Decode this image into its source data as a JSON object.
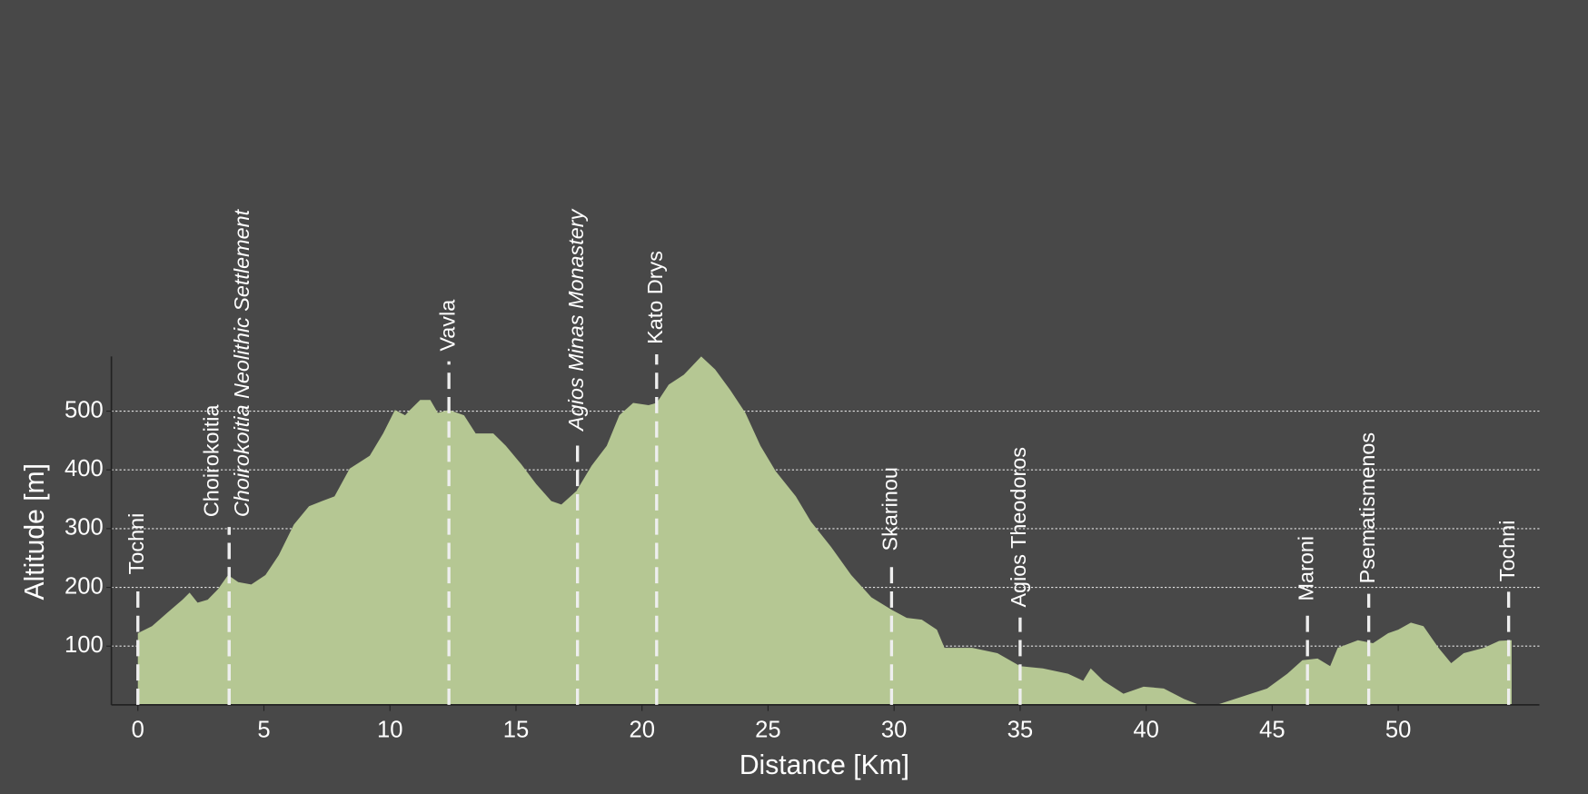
{
  "chart_data": {
    "type": "area",
    "x_label": "Distance [Km]",
    "y_label": "Altitude [m]",
    "x": [
      0,
      0.56,
      1.17,
      1.77,
      2.05,
      2.37,
      2.77,
      3.18,
      3.58,
      3.98,
      4.5,
      5.06,
      5.59,
      6.19,
      6.79,
      7.31,
      7.8,
      8.4,
      9.2,
      9.73,
      10.2,
      10.6,
      10.8,
      11.2,
      11.6,
      11.9,
      12.34,
      12.94,
      13.4,
      14.1,
      14.6,
      15.2,
      15.8,
      16.4,
      16.8,
      17.4,
      18.0,
      18.6,
      19.1,
      19.65,
      20.26,
      20.58,
      21.06,
      21.66,
      22.35,
      22.9,
      23.5,
      24.1,
      24.7,
      25.3,
      26.1,
      26.7,
      27.5,
      28.3,
      29.1,
      29.9,
      30.5,
      31.1,
      31.7,
      32.0,
      33.1,
      34.1,
      35.0,
      35.9,
      36.9,
      37.5,
      37.8,
      38.3,
      39.1,
      39.9,
      40.7,
      41.5,
      42.1,
      42.8,
      43.8,
      44.8,
      45.6,
      46.2,
      46.8,
      47.3,
      47.6,
      48.4,
      49.0,
      49.6,
      50.0,
      50.5,
      51.0,
      51.6,
      52.1,
      52.6,
      53.4,
      54.0,
      54.5
    ],
    "values": [
      122,
      134,
      157,
      179,
      191,
      174,
      179,
      197,
      221,
      209,
      205,
      221,
      255,
      307,
      338,
      347,
      355,
      402,
      424,
      462,
      502,
      493,
      502,
      519,
      519,
      497,
      502,
      493,
      462,
      462,
      441,
      410,
      376,
      347,
      341,
      364,
      407,
      441,
      493,
      514,
      510,
      514,
      545,
      562,
      593,
      571,
      536,
      497,
      441,
      398,
      355,
      312,
      269,
      221,
      183,
      162,
      148,
      145,
      128,
      97,
      97,
      88,
      66,
      62,
      53,
      41,
      62,
      41,
      19,
      31,
      28,
      10,
      0,
      0,
      14,
      28,
      53,
      76,
      79,
      66,
      97,
      110,
      105,
      122,
      128,
      140,
      134,
      97,
      71,
      88,
      97,
      109,
      110
    ],
    "color": "#b5c793",
    "xlim": [
      -1.05,
      55.6
    ],
    "ylim": [
      0,
      593
    ],
    "xticks": [
      0,
      5,
      10,
      15,
      20,
      25,
      30,
      35,
      40,
      45,
      50
    ],
    "yticks": [
      100,
      200,
      300,
      400,
      500
    ],
    "grid": true,
    "waypoints": [
      {
        "x": 0,
        "name": "Tochni",
        "italic": false
      },
      {
        "x": 3.62,
        "name": "Choirokoitia",
        "italic": false
      },
      {
        "x": 3.62,
        "name": "Choirokoitia Neolithic Settlement",
        "italic": true
      },
      {
        "x": 12.34,
        "name": "Vavla",
        "italic": false
      },
      {
        "x": 17.44,
        "name": "Agios Minas Monastery",
        "italic": true
      },
      {
        "x": 20.58,
        "name": "Kato Drys",
        "italic": false
      },
      {
        "x": 29.9,
        "name": "Skarinou",
        "italic": false
      },
      {
        "x": 35.0,
        "name": "Agios Theodoros",
        "italic": false
      },
      {
        "x": 46.4,
        "name": "Maroni",
        "italic": false
      },
      {
        "x": 48.83,
        "name": "Psematismenos",
        "italic": false
      },
      {
        "x": 54.38,
        "name": "Tochni",
        "italic": false
      }
    ]
  }
}
